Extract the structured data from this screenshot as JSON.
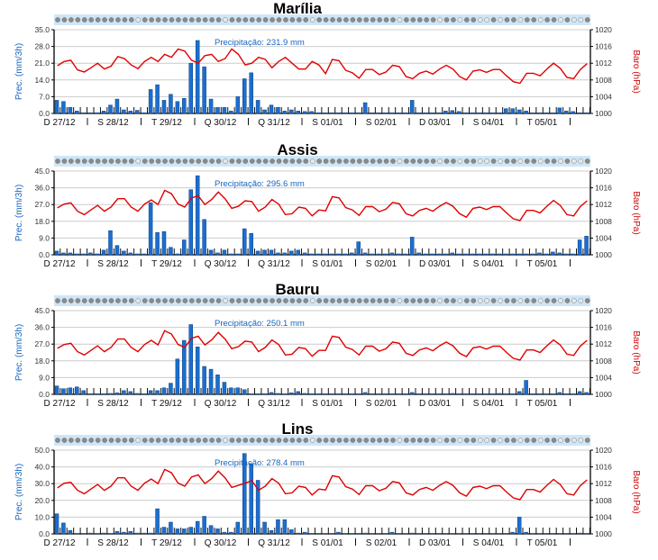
{
  "colors": {
    "bars": "#1a6fd0",
    "bar_edge": "#0b3f86",
    "pressure_line": "#e00000",
    "grid": "#cccccc",
    "strip": "#cfe6f7",
    "ylabel": "#1565c0",
    "y2label": "#d00000"
  },
  "chart_data": [
    {
      "type": "bar+line",
      "title": "Marília",
      "annotation": "Precipitação: 231.9 mm",
      "ylabel": "Prec. (mm/3h)",
      "y2label": "Baro (hPa)",
      "ylim": [
        0,
        35
      ],
      "yticks": [
        "0.0",
        "7.0",
        "14.0",
        "21.0",
        "28.0",
        "35.0"
      ],
      "y2lim": [
        1000,
        1020
      ],
      "y2ticks": [
        "1000",
        "1004",
        "1008",
        "1012",
        "1016",
        "1020"
      ],
      "x_labels": [
        "D 27/12",
        "S 28/12",
        "T 29/12",
        "Q 30/12",
        "Q 31/12",
        "S 01/01",
        "S 02/01",
        "D 03/01",
        "S 04/01",
        "T 05/01"
      ],
      "precipitation": [
        5.5,
        5,
        2.5,
        1,
        0.3,
        0.3,
        0.3,
        1,
        3.5,
        6,
        1.5,
        1,
        1.3,
        0.3,
        10,
        12,
        5.5,
        8,
        5,
        6.3,
        21,
        30.5,
        19.5,
        6,
        2.5,
        2.5,
        1,
        7,
        14.5,
        17,
        5.5,
        1.5,
        3.5,
        2.5,
        1,
        1.5,
        1,
        0.8,
        0.8,
        0.3,
        0.3,
        0.3,
        0.3,
        0.3,
        0.3,
        0.3,
        4.5,
        0.3,
        0.3,
        0.3,
        0.3,
        0.3,
        0.3,
        5.5,
        0.3,
        0.3,
        0.3,
        0.3,
        1,
        1.2,
        0.8,
        0.3,
        0.3,
        0.3,
        0.3,
        0.3,
        0.3,
        2,
        2,
        1.5,
        1,
        0.3,
        0.3,
        0.3,
        0.3,
        2.3,
        1,
        0.8,
        0.3,
        0.3
      ],
      "pressure": [
        1011.4,
        1012.4,
        1012.7,
        1010.4,
        1009.9,
        1010.9,
        1012,
        1010.6,
        1011.3,
        1013.6,
        1013.1,
        1011.6,
        1010.7,
        1012.4,
        1013.4,
        1012.4,
        1014.1,
        1013.4,
        1015.4,
        1014.9,
        1012.7,
        1012,
        1013.8,
        1014.1,
        1012.4,
        1013.1,
        1015.4,
        1014.1,
        1011.6,
        1012,
        1013.4,
        1012.9,
        1010.9,
        1012.4,
        1013.4,
        1012,
        1010.6,
        1010.6,
        1012.4,
        1011.6,
        1009.5,
        1012.9,
        1012.6,
        1010.3,
        1009.7,
        1008.4,
        1010.5,
        1010.5,
        1009.3,
        1009.9,
        1011.5,
        1011.2,
        1008.8,
        1008.3,
        1009.6,
        1010.1,
        1009.4,
        1010.6,
        1011.5,
        1010.6,
        1008.8,
        1008,
        1010.1,
        1010.4,
        1009.8,
        1010.5,
        1010.5,
        1009,
        1007.6,
        1007.2,
        1009.6,
        1009.6,
        1009,
        1010.6,
        1012,
        1010.8,
        1008.6,
        1008.3,
        1010.5,
        1011.9
      ]
    },
    {
      "type": "bar+line",
      "title": "Assis",
      "annotation": "Precipitação: 295.6 mm",
      "ylabel": "Prec. (mm/3h)",
      "y2label": "Baro (hPa)",
      "ylim": [
        0,
        45
      ],
      "yticks": [
        "0.0",
        "9.0",
        "18.0",
        "27.0",
        "36.0",
        "45.0"
      ],
      "y2lim": [
        1000,
        1020
      ],
      "y2ticks": [
        "1000",
        "1004",
        "1008",
        "1012",
        "1016",
        "1020"
      ],
      "x_labels": [
        "D 27/12",
        "S 28/12",
        "T 29/12",
        "Q 30/12",
        "Q 31/12",
        "S 01/01",
        "S 02/01",
        "D 03/01",
        "S 04/01",
        "T 05/01"
      ],
      "precipitation": [
        2,
        1,
        1,
        0.5,
        0.5,
        1,
        0.5,
        2.5,
        13,
        5,
        2,
        1,
        0.5,
        0.5,
        28,
        12,
        12.5,
        4,
        0.5,
        8,
        35,
        42.5,
        19,
        2.5,
        1,
        2.5,
        0.5,
        0.5,
        14,
        11.5,
        2,
        2.5,
        2.5,
        1,
        1,
        2,
        2.5,
        1,
        0.5,
        0.5,
        0.5,
        0.5,
        0.5,
        0.5,
        1,
        7,
        1,
        0.5,
        0.5,
        0.5,
        1,
        0.5,
        0.5,
        9.5,
        1,
        0.5,
        0.5,
        0.5,
        0.5,
        1,
        0.5,
        0.5,
        0.5,
        0.5,
        0.5,
        0.5,
        0.5,
        0.5,
        0.5,
        0.5,
        0.5,
        0.5,
        1,
        0.5,
        1.5,
        1,
        0.5,
        0.5,
        8,
        10
      ],
      "pressure": [
        1011.2,
        1012.1,
        1012.4,
        1010.4,
        1009.6,
        1010.7,
        1011.8,
        1010.4,
        1011.4,
        1013.4,
        1013.4,
        1011.4,
        1010.4,
        1012.1,
        1013.1,
        1012,
        1015.4,
        1014.6,
        1012.1,
        1011.4,
        1013.6,
        1014.1,
        1012,
        1013.2,
        1015,
        1013.4,
        1011.1,
        1011.6,
        1012.9,
        1012.7,
        1010.4,
        1011.4,
        1013.2,
        1012.1,
        1009.6,
        1009.8,
        1011.4,
        1011.1,
        1009.3,
        1010.7,
        1010.5,
        1013.9,
        1013.6,
        1011.3,
        1010.7,
        1009.4,
        1011.5,
        1011.5,
        1010.3,
        1010.9,
        1012.5,
        1012.2,
        1009.8,
        1009.3,
        1010.6,
        1011.1,
        1010.4,
        1011.6,
        1012.5,
        1011.6,
        1009.8,
        1009,
        1011.1,
        1011.4,
        1010.8,
        1011.5,
        1011.5,
        1010,
        1008.6,
        1008.2,
        1010.6,
        1010.6,
        1010,
        1011.6,
        1013,
        1011.8,
        1009.6,
        1009.3,
        1011.5,
        1012.9
      ]
    },
    {
      "type": "bar+line",
      "title": "Bauru",
      "annotation": "Precipitação: 250.1 mm",
      "ylabel": "Prec. (mm/3h)",
      "y2label": "Baro (hPa)",
      "ylim": [
        0,
        45
      ],
      "yticks": [
        "0.0",
        "9.0",
        "18.0",
        "27.0",
        "36.0",
        "45.0"
      ],
      "y2lim": [
        1000,
        1020
      ],
      "y2ticks": [
        "1000",
        "1004",
        "1008",
        "1012",
        "1016",
        "1020"
      ],
      "x_labels": [
        "D 27/12",
        "S 28/12",
        "T 29/12",
        "Q 30/12",
        "Q 31/12",
        "S 01/01",
        "S 02/01",
        "D 03/01",
        "S 04/01",
        "T 05/01"
      ],
      "precipitation": [
        4.5,
        3,
        3.5,
        4,
        2,
        0.3,
        0.3,
        0.3,
        0.5,
        0.8,
        2,
        1.5,
        0.5,
        0.3,
        2,
        2,
        3.5,
        6,
        19,
        29,
        37.5,
        25.5,
        15,
        13.5,
        10.5,
        6.5,
        3.5,
        3.5,
        2.5,
        0.3,
        0.3,
        0.3,
        1,
        0.5,
        0.3,
        0.8,
        1.5,
        0.5,
        0.3,
        0.3,
        0.3,
        0.3,
        0.3,
        0.3,
        0.3,
        0.3,
        1,
        0.3,
        0.3,
        0.3,
        0.3,
        0.3,
        0.3,
        1,
        0.3,
        0.3,
        0.3,
        0.3,
        0.3,
        0.5,
        0.3,
        0.3,
        0.3,
        0.3,
        0.3,
        0.3,
        0.5,
        0.3,
        0.3,
        1.5,
        7.5,
        0.3,
        0.3,
        0.3,
        0.3,
        1,
        0.3,
        0.3,
        1.5,
        1
      ],
      "pressure": [
        1011,
        1011.9,
        1012.2,
        1010.2,
        1009.4,
        1010.5,
        1011.6,
        1010.2,
        1011.2,
        1013.2,
        1013.2,
        1011.2,
        1010.2,
        1011.9,
        1012.9,
        1011.8,
        1015.2,
        1014.4,
        1011.9,
        1011.2,
        1013.4,
        1013.9,
        1011.8,
        1013,
        1014.8,
        1013.2,
        1010.9,
        1011.4,
        1012.7,
        1012.5,
        1010.2,
        1011.2,
        1013,
        1011.9,
        1009.4,
        1009.6,
        1011.2,
        1010.9,
        1009.1,
        1010.5,
        1010.5,
        1013.9,
        1013.6,
        1011.3,
        1010.7,
        1009.4,
        1011.5,
        1011.5,
        1010.3,
        1010.9,
        1012.5,
        1012.2,
        1009.8,
        1009.3,
        1010.6,
        1011.1,
        1010.4,
        1011.6,
        1012.5,
        1011.6,
        1009.8,
        1009,
        1011.1,
        1011.4,
        1010.8,
        1011.5,
        1011.5,
        1010,
        1008.6,
        1008.2,
        1010.6,
        1010.6,
        1010,
        1011.6,
        1013,
        1011.8,
        1009.6,
        1009.3,
        1011.5,
        1012.9
      ]
    },
    {
      "type": "bar+line",
      "title": "Lins",
      "annotation": "Precipitação: 278.4 mm",
      "ylabel": "Prec. (mm/3h)",
      "y2label": "Baro (hPa)",
      "ylim": [
        0,
        50
      ],
      "yticks": [
        "0.0",
        "10.0",
        "20.0",
        "30.0",
        "40.0",
        "50.0"
      ],
      "y2lim": [
        1000,
        1020
      ],
      "y2ticks": [
        "1000",
        "1004",
        "1008",
        "1012",
        "1016",
        "1020"
      ],
      "x_labels": [
        "D 27/12",
        "S 28/12",
        "T 29/12",
        "Q 30/12",
        "Q 31/12",
        "S 01/01",
        "S 02/01",
        "D 03/01",
        "S 04/01",
        "T 05/01"
      ],
      "precipitation": [
        12,
        6.5,
        2,
        0.3,
        0.3,
        0.5,
        0.3,
        0.5,
        0.3,
        1.5,
        1,
        1.5,
        0.5,
        0.5,
        0.5,
        15,
        4,
        7,
        3,
        3,
        4,
        7.5,
        10.5,
        5,
        3,
        1,
        1,
        7,
        48,
        42,
        32,
        7,
        2,
        8.5,
        8.5,
        2.5,
        0.5,
        1,
        0.3,
        0.3,
        0.3,
        0.3,
        1,
        0.3,
        0.3,
        0.3,
        0.5,
        0.3,
        0.3,
        0.3,
        1,
        0.3,
        0.3,
        0.5,
        0.3,
        0.3,
        0.3,
        0.3,
        0.3,
        0.3,
        0.3,
        0.3,
        0.3,
        0.3,
        0.3,
        0.3,
        0.3,
        0.3,
        1,
        10,
        1,
        0.3,
        0.3,
        0.3,
        0.3,
        0.3,
        0.3,
        0.3,
        0.5,
        0.3
      ],
      "pressure": [
        1011,
        1012.1,
        1012.3,
        1010.4,
        1009.6,
        1010.7,
        1011.8,
        1010.4,
        1011.4,
        1013.4,
        1013.4,
        1011.4,
        1010.4,
        1012.1,
        1013.1,
        1012,
        1015.4,
        1014.6,
        1012.1,
        1011.4,
        1013.6,
        1014.1,
        1012,
        1013.2,
        1015,
        1013.4,
        1011.1,
        1011.6,
        1012.1,
        1012.7,
        1010.4,
        1011.4,
        1013.2,
        1012.1,
        1009.6,
        1009.8,
        1011.4,
        1011.1,
        1009.3,
        1010.7,
        1010.5,
        1013.9,
        1013.6,
        1011.3,
        1010.7,
        1009.4,
        1011.5,
        1011.5,
        1010.3,
        1010.9,
        1012.5,
        1012.2,
        1009.8,
        1009.3,
        1010.6,
        1011.1,
        1010.4,
        1011.6,
        1012.5,
        1011.6,
        1009.8,
        1009,
        1011.1,
        1011.4,
        1010.8,
        1011.5,
        1011.5,
        1010,
        1008.6,
        1008.2,
        1010.6,
        1010.6,
        1010,
        1011.6,
        1013,
        1011.8,
        1009.6,
        1009.3,
        1011.5,
        1012.9
      ]
    }
  ]
}
